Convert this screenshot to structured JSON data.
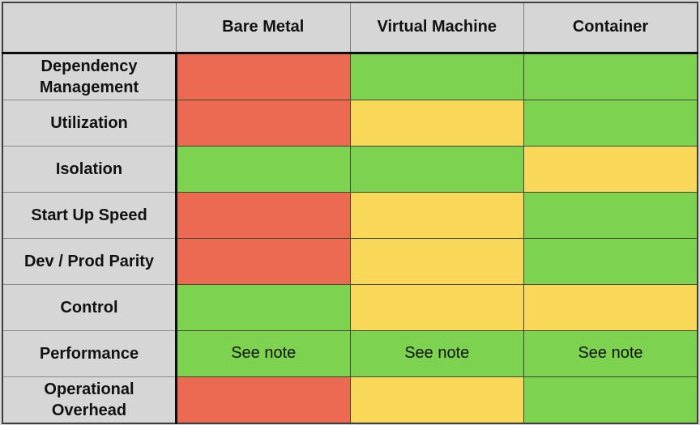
{
  "chart_data": {
    "type": "table",
    "title": "",
    "columns": [
      "",
      "Bare Metal",
      "Virtual Machine",
      "Container"
    ],
    "rows": [
      {
        "label": "Dependency Management",
        "cells": [
          {
            "status": "bad",
            "text": ""
          },
          {
            "status": "good",
            "text": ""
          },
          {
            "status": "good",
            "text": ""
          }
        ]
      },
      {
        "label": "Utilization",
        "cells": [
          {
            "status": "bad",
            "text": ""
          },
          {
            "status": "warn",
            "text": ""
          },
          {
            "status": "good",
            "text": ""
          }
        ]
      },
      {
        "label": "Isolation",
        "cells": [
          {
            "status": "good",
            "text": ""
          },
          {
            "status": "good",
            "text": ""
          },
          {
            "status": "warn",
            "text": ""
          }
        ]
      },
      {
        "label": "Start Up Speed",
        "cells": [
          {
            "status": "bad",
            "text": ""
          },
          {
            "status": "warn",
            "text": ""
          },
          {
            "status": "good",
            "text": ""
          }
        ]
      },
      {
        "label": "Dev / Prod Parity",
        "cells": [
          {
            "status": "bad",
            "text": ""
          },
          {
            "status": "warn",
            "text": ""
          },
          {
            "status": "good",
            "text": ""
          }
        ]
      },
      {
        "label": "Control",
        "cells": [
          {
            "status": "good",
            "text": ""
          },
          {
            "status": "warn",
            "text": ""
          },
          {
            "status": "warn",
            "text": ""
          }
        ]
      },
      {
        "label": "Performance",
        "cells": [
          {
            "status": "good",
            "text": "See note"
          },
          {
            "status": "good",
            "text": "See note"
          },
          {
            "status": "good",
            "text": "See note"
          }
        ]
      },
      {
        "label": "Operational Overhead",
        "cells": [
          {
            "status": "bad",
            "text": ""
          },
          {
            "status": "warn",
            "text": ""
          },
          {
            "status": "good",
            "text": ""
          }
        ]
      }
    ],
    "status_colors": {
      "good": "#7dd250",
      "warn": "#f9d758",
      "bad": "#ec6a52"
    },
    "status_meaning": {
      "good": "green",
      "warn": "yellow",
      "bad": "red"
    },
    "layout": {
      "header_background": "#d6d6d6",
      "label_background": "#d6d6d6",
      "page_background": "#d9d9d9",
      "border_color": "#0d0d0d"
    }
  }
}
